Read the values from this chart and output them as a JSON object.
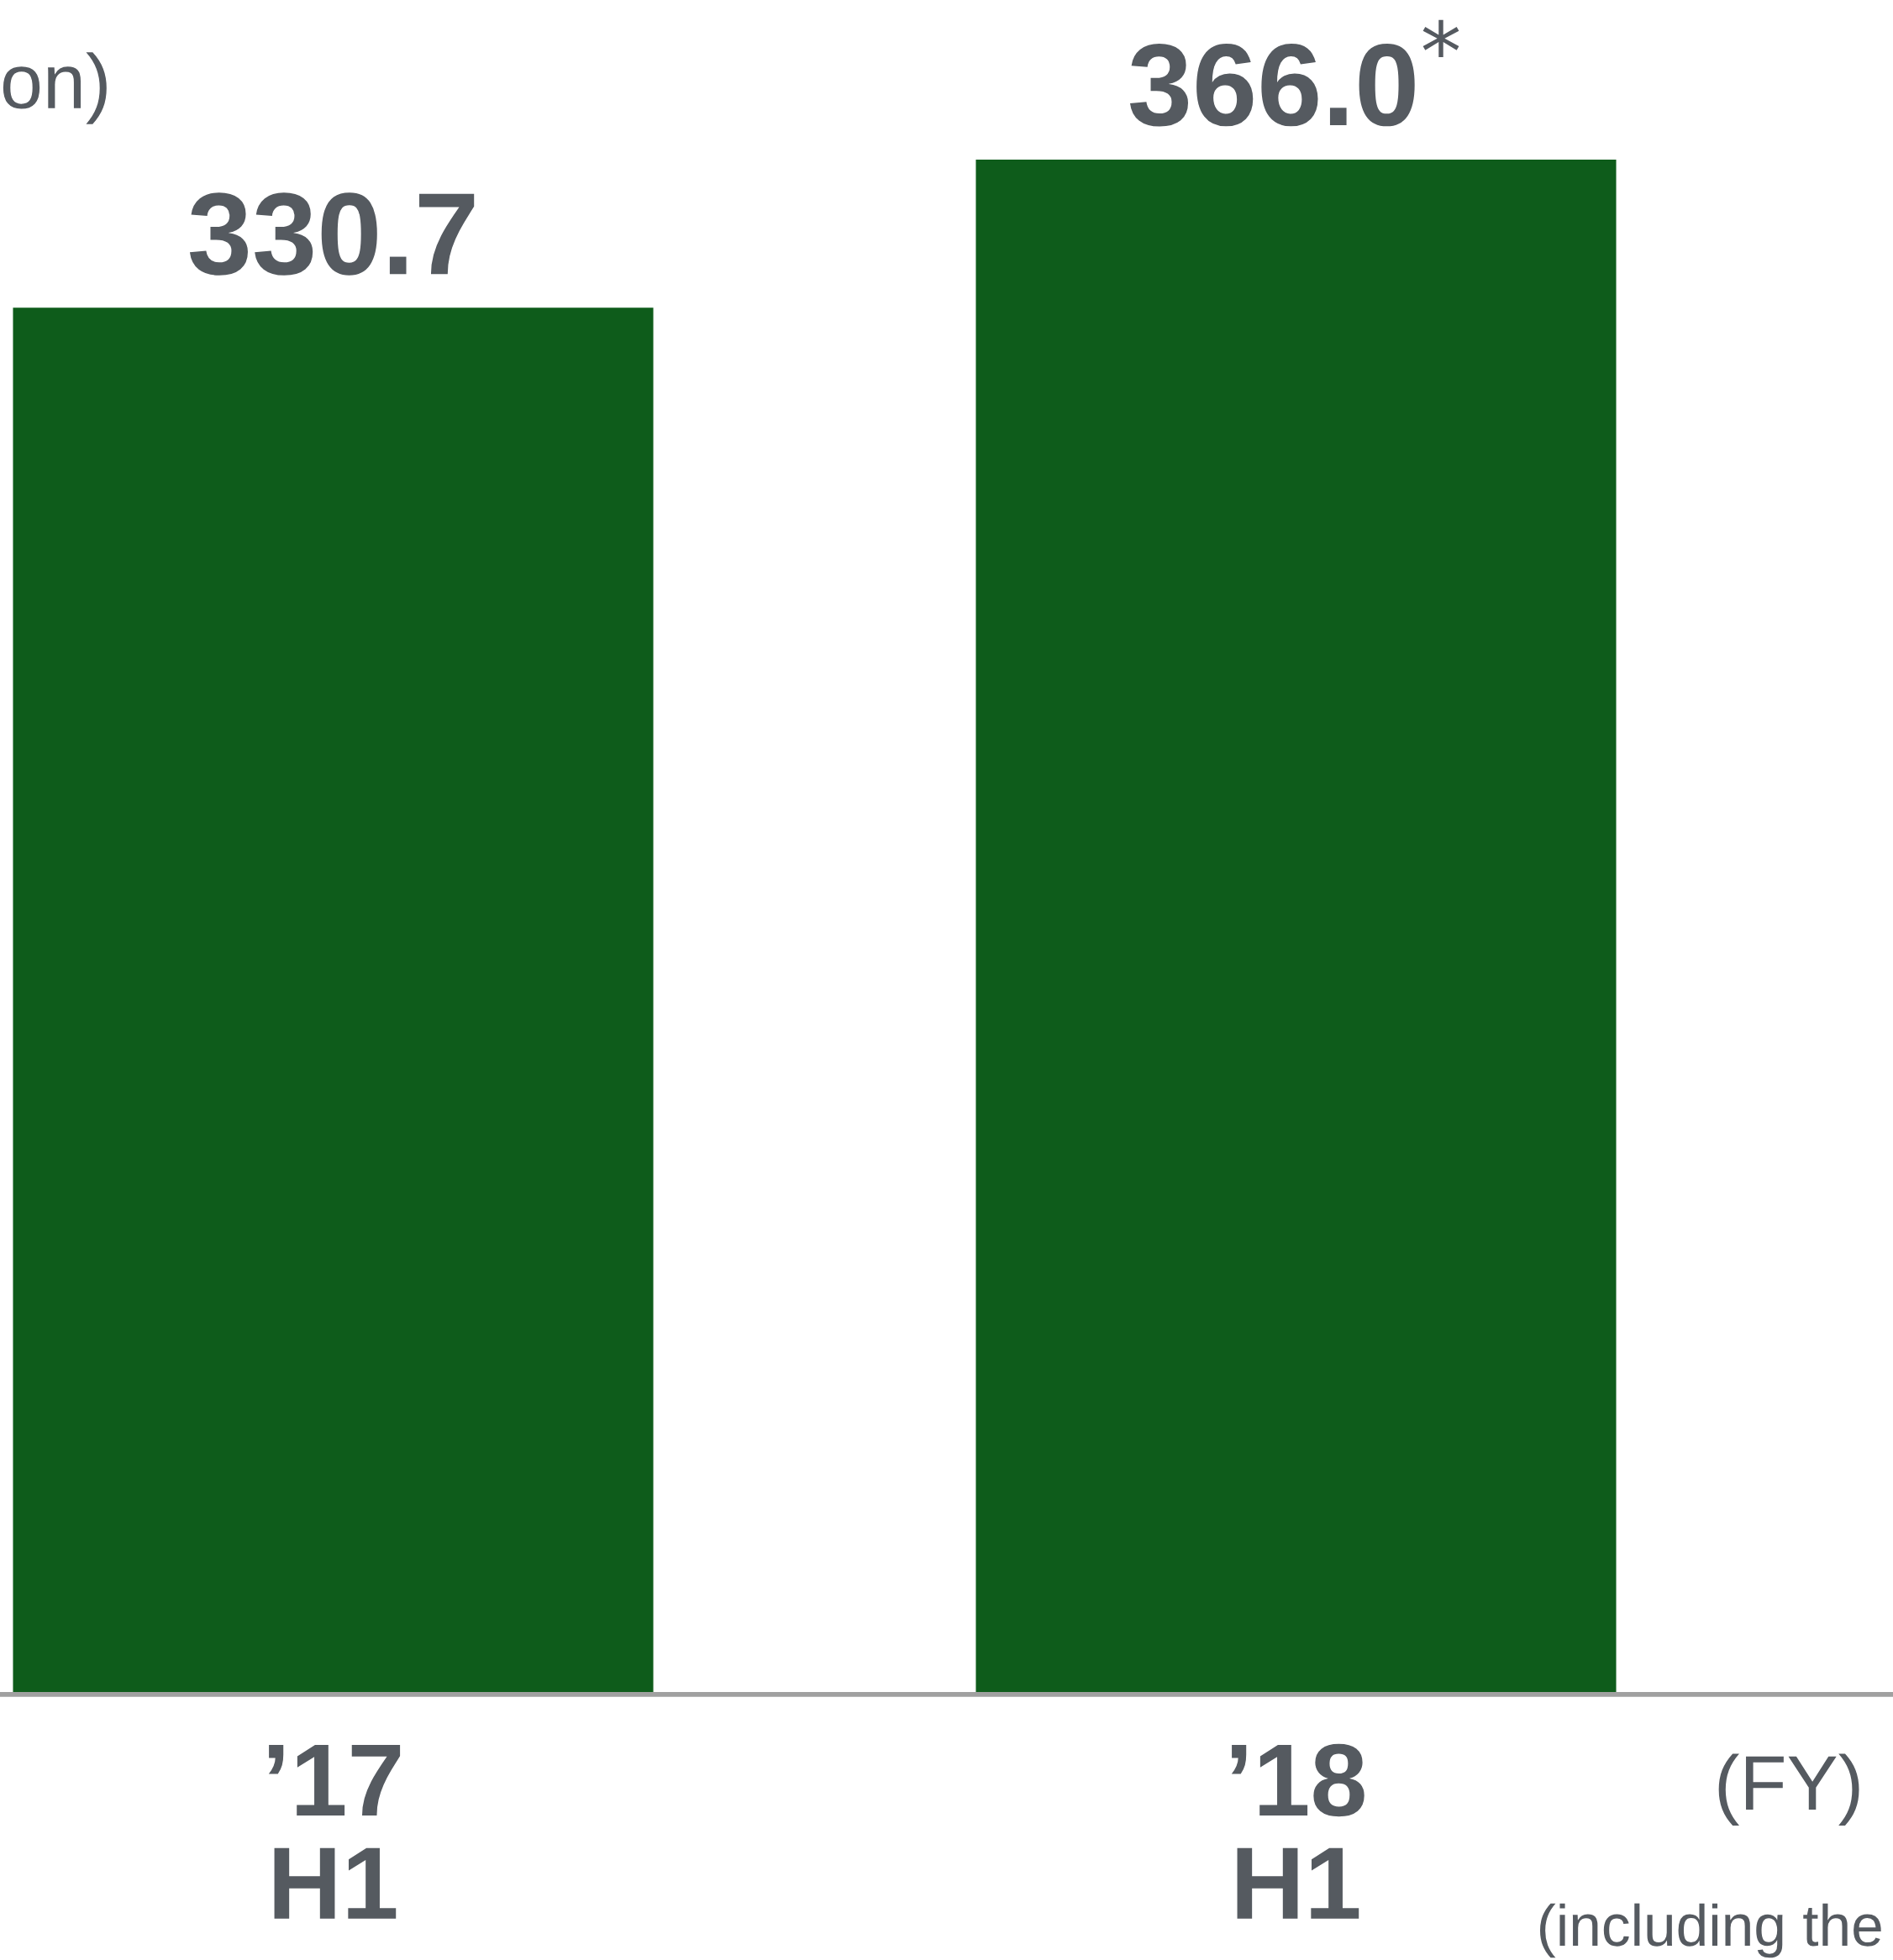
{
  "chart_data": {
    "type": "bar",
    "categories": [
      "’17\nH1",
      "’18\nH1"
    ],
    "values": [
      330.7,
      366.0
    ],
    "color": "#0e5c1b",
    "value_labels": [
      "330.7",
      "366.0$^{*}$"
    ],
    "xlabel": "(FY)",
    "annotations": [
      "on)",
      "(including the"
    ],
    "grid": false,
    "legend": false
  }
}
